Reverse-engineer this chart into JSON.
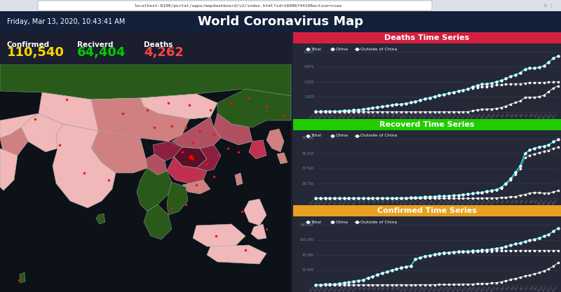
{
  "title": "World Coronavirus Map",
  "browser_bar": "localhost:8190/portal/apps/mapdashboard/v2/index.html?id=16096744108action=view",
  "date_text": "Friday, Mar 13, 2020, 10:43:41 AM",
  "confirmed_label": "Confirmed",
  "recovered_label": "Reciverd",
  "deaths_label": "Deaths",
  "confirmed_value": "110,540",
  "recovered_value": "64,404",
  "deaths_value": "4,262",
  "confirmed_color": "#FFD700",
  "recovered_color": "#00CC00",
  "deaths_color": "#FF4444",
  "bg_color": "#1e2230",
  "header_color": "#12203a",
  "stats_bg": "#1a1e2e",
  "map_bg": "#0d1118",
  "deaths_bar_color": "#d42040",
  "recovered_bar_color": "#22cc00",
  "confirmed_bar_color": "#e8a020",
  "chart_bg": "#252836",
  "line_color_total": "#00e5ff",
  "line_color_china": "#888888",
  "line_color_outside": "#cccccc",
  "dates": [
    "1/22",
    "1/23",
    "1/24",
    "1/25",
    "1/26",
    "1/27",
    "1/28",
    "1/29",
    "1/30",
    "1/31",
    "2/1",
    "2/2",
    "2/3",
    "2/4",
    "2/5",
    "2/6",
    "2/7",
    "2/8",
    "2/9",
    "2/10",
    "2/11",
    "2/12",
    "2/13",
    "2/14",
    "2/15",
    "2/16",
    "2/17",
    "2/18",
    "2/19",
    "2/20",
    "2/21",
    "2/22",
    "2/23",
    "2/24",
    "2/25",
    "2/26",
    "2/27",
    "2/28",
    "2/29",
    "3/1",
    "3/2",
    "3/3",
    "3/4",
    "3/5",
    "3/6",
    "3/7",
    "3/8",
    "3/9",
    "3/10",
    "3/11",
    "3/12",
    "3/13"
  ],
  "deaths_total": [
    17,
    17,
    26,
    42,
    56,
    82,
    131,
    133,
    171,
    213,
    259,
    362,
    426,
    492,
    563,
    633,
    722,
    812,
    813,
    910,
    1012,
    1112,
    1261,
    1383,
    1523,
    1666,
    1775,
    1873,
    2009,
    2126,
    2247,
    2360,
    2462,
    2705,
    2872,
    2977,
    3043,
    3100,
    3254,
    3408,
    3600,
    3827,
    4012,
    4210,
    4631,
    4720,
    4720,
    4825,
    4980,
    5399,
    5806,
    6065
  ],
  "deaths_china": [
    17,
    17,
    26,
    42,
    56,
    82,
    131,
    133,
    171,
    213,
    259,
    362,
    426,
    492,
    563,
    633,
    722,
    812,
    813,
    910,
    1012,
    1112,
    1261,
    1383,
    1523,
    1666,
    1775,
    1873,
    2009,
    2126,
    2247,
    2360,
    2462,
    2592,
    2663,
    2715,
    2744,
    2790,
    2912,
    2943,
    2981,
    2995,
    3012,
    3042,
    3096,
    3130,
    3158,
    3172,
    3189,
    3213,
    3226,
    3250
  ],
  "deaths_outside": [
    0,
    0,
    0,
    0,
    0,
    0,
    0,
    0,
    0,
    0,
    0,
    0,
    0,
    0,
    0,
    0,
    0,
    0,
    0,
    0,
    0,
    0,
    0,
    0,
    0,
    0,
    0,
    0,
    0,
    0,
    0,
    0,
    0,
    113,
    209,
    262,
    299,
    310,
    342,
    465,
    619,
    832,
    1000,
    1168,
    1535,
    1590,
    1562,
    1653,
    1791,
    2186,
    2580,
    2815
  ],
  "recovered_total": [
    28,
    28,
    30,
    36,
    43,
    45,
    60,
    73,
    90,
    106,
    120,
    154,
    160,
    200,
    262,
    285,
    325,
    488,
    541,
    657,
    843,
    1153,
    1477,
    1698,
    2050,
    2350,
    2649,
    2952,
    3213,
    3573,
    3996,
    4740,
    5327,
    6217,
    7024,
    7698,
    8898,
    9827,
    11200,
    13800,
    18800,
    24800,
    32600,
    40500,
    56000,
    60400,
    62600,
    64400,
    65400,
    67000,
    70800,
    73800
  ],
  "recovered_china": [
    28,
    28,
    30,
    36,
    43,
    45,
    60,
    73,
    90,
    106,
    120,
    154,
    160,
    200,
    262,
    285,
    325,
    488,
    541,
    657,
    843,
    1153,
    1477,
    1698,
    2050,
    2350,
    2649,
    2952,
    3213,
    3573,
    3996,
    4740,
    5327,
    6134,
    6916,
    7380,
    8473,
    9298,
    10590,
    12900,
    17529,
    22888,
    30384,
    36637,
    51170,
    53773,
    55404,
    57388,
    58735,
    60181,
    62793,
    64111
  ],
  "recovered_outside": [
    0,
    0,
    0,
    0,
    0,
    0,
    0,
    0,
    0,
    0,
    0,
    0,
    0,
    0,
    0,
    0,
    0,
    0,
    0,
    0,
    0,
    0,
    0,
    0,
    0,
    0,
    0,
    0,
    0,
    0,
    0,
    0,
    0,
    83,
    108,
    318,
    425,
    529,
    610,
    900,
    1271,
    1912,
    2216,
    3863,
    4830,
    6627,
    7196,
    7012,
    6665,
    6819,
    8007,
    9689
  ],
  "confirmed_total": [
    555,
    653,
    941,
    1434,
    2118,
    2927,
    5578,
    6165,
    8234,
    9927,
    12038,
    16787,
    19881,
    23892,
    27636,
    30817,
    34391,
    37120,
    40171,
    42638,
    44653,
    60327,
    64438,
    67211,
    69197,
    71329,
    73332,
    75184,
    75700,
    77001,
    77788,
    78811,
    78959,
    79400,
    80239,
    80981,
    82294,
    83652,
    85403,
    87340,
    89937,
    92840,
    95707,
    97876,
    101299,
    103948,
    106462,
    109577,
    113702,
    118319,
    125048,
    132758
  ],
  "confirmed_china": [
    548,
    643,
    920,
    1406,
    2075,
    2877,
    5509,
    6088,
    8141,
    9807,
    11821,
    16607,
    19692,
    23680,
    27374,
    30553,
    34110,
    36814,
    39802,
    42354,
    44211,
    59800,
    63851,
    66492,
    68500,
    70548,
    72436,
    74185,
    74576,
    75891,
    76288,
    76936,
    77150,
    77150,
    77658,
    78064,
    78824,
    79251,
    79968,
    80026,
    80151,
    80270,
    80409,
    80552,
    80651,
    80695,
    80735,
    80754,
    80778,
    80793,
    80813,
    80844
  ],
  "confirmed_outside": [
    7,
    10,
    21,
    28,
    43,
    50,
    69,
    77,
    93,
    120,
    217,
    180,
    189,
    212,
    262,
    264,
    281,
    306,
    369,
    284,
    442,
    527,
    587,
    719,
    697,
    781,
    896,
    999,
    1124,
    1110,
    1500,
    1875,
    1809,
    2250,
    2581,
    2917,
    3470,
    4401,
    5435,
    7314,
    9786,
    12570,
    15298,
    17324,
    20648,
    23253,
    25727,
    28823,
    32924,
    37526,
    44235,
    51914
  ]
}
